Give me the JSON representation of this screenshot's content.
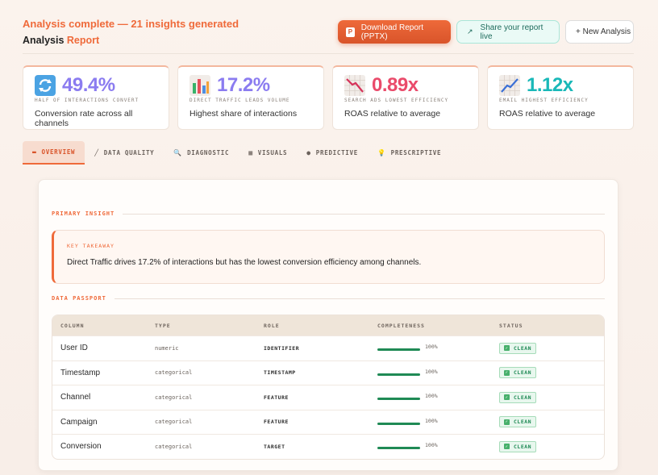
{
  "header": {
    "status": "Analysis complete — 21 insights generated",
    "title_main": "Analysis",
    "title_accent": "Report"
  },
  "actions": {
    "download_badge": "P",
    "download_label": "Download Report (PPTX)",
    "share_label": "Share your report live",
    "new_label": "+ New Analysis"
  },
  "stats": [
    {
      "value": "49.4%",
      "caption": "Half of interactions convert",
      "desc": "Conversion rate across all channels",
      "color": "#8b7cf0",
      "icon": "refresh-icon"
    },
    {
      "value": "17.2%",
      "caption": "Direct Traffic leads volume",
      "desc": "Highest share of interactions",
      "color": "#8b7cf0",
      "icon": "bar-chart-icon"
    },
    {
      "value": "0.89x",
      "caption": "Search Ads lowest efficiency",
      "desc": "ROAS relative to average",
      "color": "#ea4b6b",
      "icon": "chart-down-icon"
    },
    {
      "value": "1.12x",
      "caption": "Email highest efficiency",
      "desc": "ROAS relative to average",
      "color": "#19b8b8",
      "icon": "chart-up-icon"
    }
  ],
  "tabs": [
    {
      "label": "Overview",
      "icon": "▬",
      "active": true
    },
    {
      "label": "Data Quality",
      "icon": "╱"
    },
    {
      "label": "Diagnostic",
      "icon": "🔍"
    },
    {
      "label": "Visuals",
      "icon": "▦"
    },
    {
      "label": "Predictive",
      "icon": "●"
    },
    {
      "label": "Prescriptive",
      "icon": "💡"
    }
  ],
  "primary_insight": {
    "section_label": "Primary Insight",
    "takeaway_label": "Key Takeaway",
    "takeaway_text": "Direct Traffic drives 17.2% of interactions but has the lowest conversion efficiency among channels."
  },
  "passport": {
    "section_label": "Data Passport",
    "headers": [
      "Column",
      "Type",
      "Role",
      "Completeness",
      "Status"
    ],
    "rows": [
      {
        "column": "User ID",
        "type": "numeric",
        "role": "IDENTIFIER",
        "completeness": "100%",
        "status": "CLEAN"
      },
      {
        "column": "Timestamp",
        "type": "categorical",
        "role": "TIMESTAMP",
        "completeness": "100%",
        "status": "CLEAN"
      },
      {
        "column": "Channel",
        "type": "categorical",
        "role": "FEATURE",
        "completeness": "100%",
        "status": "CLEAN"
      },
      {
        "column": "Campaign",
        "type": "categorical",
        "role": "FEATURE",
        "completeness": "100%",
        "status": "CLEAN"
      },
      {
        "column": "Conversion",
        "type": "categorical",
        "role": "TARGET",
        "completeness": "100%",
        "status": "CLEAN"
      }
    ]
  }
}
